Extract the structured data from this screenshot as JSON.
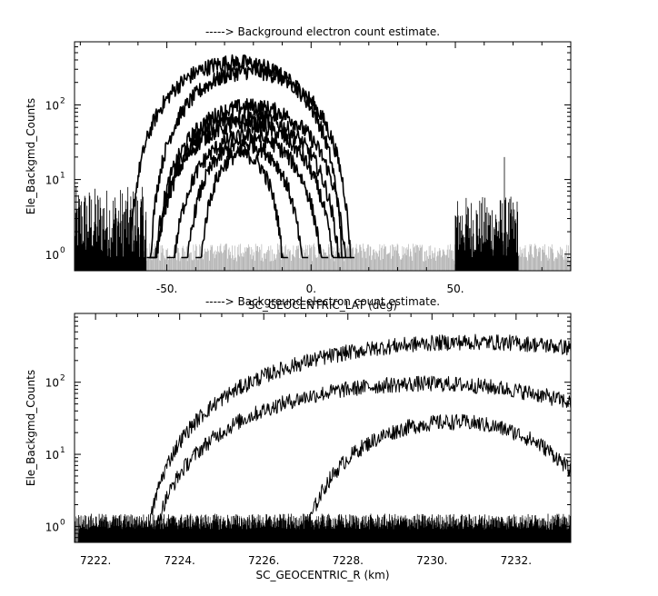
{
  "chart_data": [
    {
      "type": "line",
      "title": "-----> Background electron count estimate.",
      "xlabel": "SC_GEOCENTRIC_LAT (deg)",
      "ylabel": "Ele_Backgmd_Counts",
      "xlim": [
        -82,
        90
      ],
      "ylim": [
        0.6,
        700
      ],
      "yscale": "log",
      "x_ticks": [
        {
          "v": -50,
          "label": "-50."
        },
        {
          "v": 0,
          "label": "0."
        },
        {
          "v": 50,
          "label": "50."
        }
      ],
      "y_ticks": [
        {
          "v": 1,
          "base": "10",
          "exp": "0"
        },
        {
          "v": 10,
          "base": "10",
          "exp": "1"
        },
        {
          "v": 100,
          "base": "10",
          "exp": "2"
        }
      ],
      "x_minor": [
        -80,
        -70,
        -60,
        -40,
        -30,
        -20,
        -10,
        10,
        20,
        30,
        40,
        60,
        70,
        80
      ],
      "grid": false,
      "series": [
        {
          "peak_x": -26,
          "peak_y": 370,
          "halfwidth": 38
        },
        {
          "peak_x": -21,
          "peak_y": 280,
          "halfwidth": 36
        },
        {
          "peak_x": -21,
          "peak_y": 95,
          "halfwidth": 35
        },
        {
          "peak_x": -22,
          "peak_y": 70,
          "halfwidth": 34
        },
        {
          "peak_x": -23,
          "peak_y": 55,
          "halfwidth": 33
        },
        {
          "peak_x": -22,
          "peak_y": 38,
          "halfwidth": 28
        },
        {
          "peak_x": -23,
          "peak_y": 30,
          "halfwidth": 22
        },
        {
          "peak_x": -24,
          "peak_y": 22,
          "halfwidth": 16
        }
      ],
      "background_clusters": [
        {
          "x_range": [
            -82,
            -57
          ],
          "level": 8
        },
        {
          "x_range": [
            50,
            72
          ],
          "level": 6
        },
        {
          "x": 67,
          "y": 20
        }
      ]
    },
    {
      "type": "line",
      "title": "-----> Background electron count estimate.",
      "xlabel": "SC_GEOCENTRIC_R (km)",
      "ylabel": "Ele_Backgmd_Counts",
      "xlim": [
        7221.5,
        7233.3
      ],
      "ylim": [
        0.6,
        900
      ],
      "yscale": "log",
      "x_ticks": [
        {
          "v": 7222,
          "label": "7222."
        },
        {
          "v": 7224,
          "label": "7224."
        },
        {
          "v": 7226,
          "label": "7226."
        },
        {
          "v": 7228,
          "label": "7228."
        },
        {
          "v": 7230,
          "label": "7230."
        },
        {
          "v": 7232,
          "label": "7232."
        }
      ],
      "y_ticks": [
        {
          "v": 1,
          "base": "10",
          "exp": "0"
        },
        {
          "v": 10,
          "base": "10",
          "exp": "1"
        },
        {
          "v": 100,
          "base": "10",
          "exp": "2"
        }
      ],
      "x_minor": [
        7222.5,
        7223,
        7223.5,
        7224.5,
        7225,
        7225.5,
        7226.5,
        7227,
        7227.5,
        7228.5,
        7229,
        7229.5,
        7230.5,
        7231,
        7231.5,
        7232.5,
        7233
      ],
      "grid": false,
      "series": [
        {
          "peak_x": 7231.0,
          "peak_y": 360,
          "halfwidth": 8.0
        },
        {
          "peak_x": 7230.6,
          "peak_y": 300,
          "halfwidth": 7.8
        },
        {
          "peak_x": 7229.9,
          "peak_y": 95,
          "halfwidth": 6.9
        },
        {
          "peak_x": 7230.1,
          "peak_y": 75,
          "halfwidth": 6.3
        },
        {
          "peak_x": 7230.5,
          "peak_y": 28,
          "halfwidth": 3.9
        },
        {
          "peak_x": 7231.0,
          "peak_y": 22,
          "halfwidth": 3.3
        }
      ],
      "background_clusters": [
        {
          "x_range": [
            7221.6,
            7233.3
          ],
          "level": 1.5
        }
      ]
    }
  ]
}
